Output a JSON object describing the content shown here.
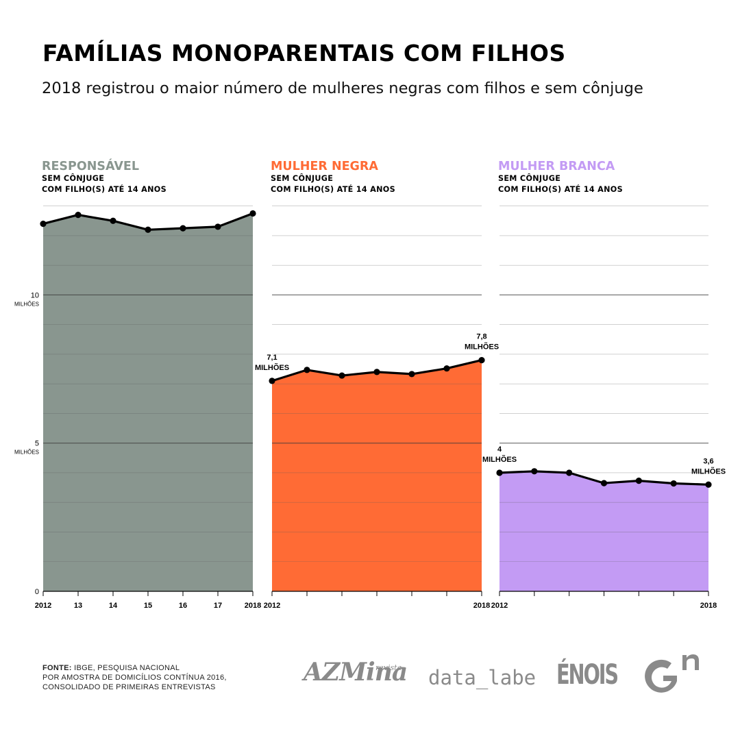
{
  "title": "FAMÍLIAS MONOPARENTAIS COM FILHOS",
  "subtitle": "2018 registrou o maior número de mulheres negras com filhos e sem cônjuge",
  "y_axis": {
    "ticks": [
      {
        "value": 10,
        "label": "10",
        "unit": "MILHÕES"
      },
      {
        "value": 5,
        "label": "5",
        "unit": "MILHÕES"
      },
      {
        "value": 0,
        "label": "0",
        "unit": ""
      }
    ]
  },
  "chart_data": [
    {
      "type": "area",
      "title": "RESPONSÁVEL",
      "subtitle_lines": [
        "SEM CÔNJUGE",
        "COM FILHO(S) ATÉ 14 ANOS"
      ],
      "color": "#89968F",
      "title_color": "#89968F",
      "x": [
        "2012",
        "13",
        "14",
        "15",
        "16",
        "17",
        "2018"
      ],
      "x_tick_labels": [
        "2012",
        "13",
        "14",
        "15",
        "16",
        "17",
        "2018"
      ],
      "values": [
        12.4,
        12.7,
        12.5,
        12.2,
        12.25,
        12.3,
        12.75
      ],
      "ylim": [
        0,
        13.2
      ],
      "annotations": []
    },
    {
      "type": "area",
      "title": "MULHER NEGRA",
      "subtitle_lines": [
        "SEM CÔNJUGE",
        "COM FILHO(S) ATÉ 14 ANOS"
      ],
      "color": "#FF6B35",
      "title_color": "#FF6B35",
      "x": [
        "2012",
        "13",
        "14",
        "15",
        "16",
        "17",
        "2018"
      ],
      "x_tick_labels": [
        "2012",
        "",
        "",
        "",
        "",
        "",
        "2018"
      ],
      "values": [
        7.1,
        7.47,
        7.28,
        7.4,
        7.33,
        7.52,
        7.8
      ],
      "ylim": [
        0,
        13.2
      ],
      "annotations": [
        {
          "index": 0,
          "lines": [
            "7,1",
            "MILHÕES"
          ]
        },
        {
          "index": 6,
          "lines": [
            "7,8",
            "MILHÕES"
          ]
        }
      ]
    },
    {
      "type": "area",
      "title": "MULHER BRANCA",
      "subtitle_lines": [
        "SEM CÔNJUGE",
        "COM FILHO(S) ATÉ 14 ANOS"
      ],
      "color": "#C39BF4",
      "title_color": "#C39BF4",
      "x": [
        "2012",
        "13",
        "14",
        "15",
        "16",
        "17",
        "2018"
      ],
      "x_tick_labels": [
        "2012",
        "",
        "",
        "",
        "",
        "",
        "2018"
      ],
      "values": [
        4.0,
        4.05,
        4.0,
        3.65,
        3.73,
        3.64,
        3.6
      ],
      "ylim": [
        0,
        13.2
      ],
      "annotations": [
        {
          "index": 0,
          "lines": [
            "4",
            "MILHÕES"
          ]
        },
        {
          "index": 6,
          "lines": [
            "3,6",
            "MILHÕES"
          ]
        }
      ]
    }
  ],
  "source": {
    "label": "FONTE:",
    "text_line1": "IBGE, PESQUISA NACIONAL",
    "text_line2": "POR AMOSTRA DE DOMICÍLIOS CONTÍNUA 2016,",
    "text_line3": "CONSOLIDADO DE PRIMEIRAS ENTREVISTAS"
  },
  "logos": {
    "azmina": "AZMina",
    "azmina_small": "revista",
    "datalabe": "data_labe",
    "enois": "ÉNOIS",
    "gn": "Gn"
  }
}
